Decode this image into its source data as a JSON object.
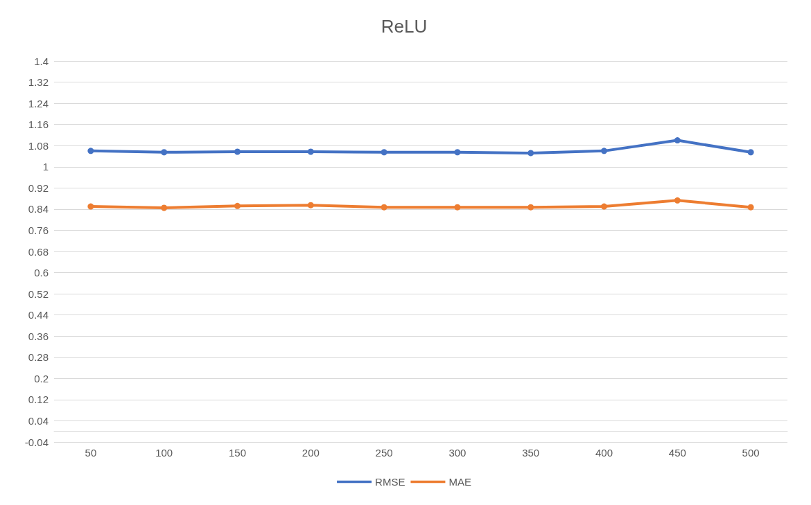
{
  "chart_data": {
    "type": "line",
    "title": "ReLU",
    "categories": [
      "50",
      "100",
      "150",
      "200",
      "250",
      "300",
      "350",
      "400",
      "450",
      "500"
    ],
    "series": [
      {
        "name": "RMSE",
        "color": "#4472c4",
        "values": [
          1.06,
          1.055,
          1.057,
          1.057,
          1.055,
          1.055,
          1.052,
          1.06,
          1.1,
          1.055
        ]
      },
      {
        "name": "MAE",
        "color": "#ed7d31",
        "values": [
          0.85,
          0.845,
          0.852,
          0.855,
          0.847,
          0.847,
          0.847,
          0.85,
          0.873,
          0.847
        ]
      }
    ],
    "ylim": [
      -0.04,
      1.4
    ],
    "yticks": [
      -0.04,
      0.04,
      0.12,
      0.2,
      0.28,
      0.36,
      0.44,
      0.52,
      0.6,
      0.68,
      0.76,
      0.84,
      0.92,
      1,
      1.08,
      1.16,
      1.24,
      1.32,
      1.4
    ],
    "grid": "y",
    "legend": "bottom",
    "marker": "circle",
    "line_style": "solid"
  }
}
